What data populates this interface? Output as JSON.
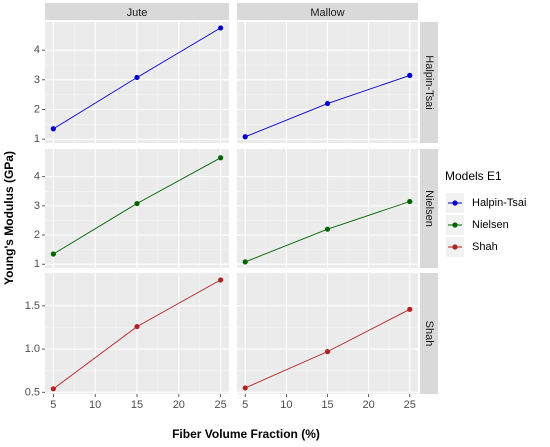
{
  "chart_data": {
    "type": "line",
    "xlabel": "Fiber Volume Fraction (%)",
    "ylabel": "Young's Modulus (GPa)",
    "columns": [
      "Jute",
      "Mallow"
    ],
    "rows": [
      "Halpin-Tsai",
      "Nielsen",
      "Shah"
    ],
    "x": [
      5,
      15,
      25
    ],
    "xlim": [
      4,
      26
    ],
    "xticks": [
      5,
      10,
      15,
      20,
      25
    ],
    "legend": {
      "title": "Models E1",
      "placement": "right",
      "entries": [
        {
          "label": "Halpin-Tsai",
          "color": "#0000CC"
        },
        {
          "label": "Nielsen",
          "color": "#006400"
        },
        {
          "label": "Shah",
          "color": "#B22222"
        }
      ]
    },
    "grid": true,
    "row_scales": [
      {
        "ylim": [
          0.87,
          4.95
        ],
        "yticks": [
          1,
          2,
          3,
          4
        ],
        "tick_labels": [
          "1",
          "2",
          "3",
          "4"
        ]
      },
      {
        "ylim": [
          0.87,
          4.95
        ],
        "yticks": [
          1,
          2,
          3,
          4
        ],
        "tick_labels": [
          "1",
          "2",
          "3",
          "4"
        ]
      },
      {
        "ylim": [
          0.48,
          1.88
        ],
        "yticks": [
          0.5,
          1.0,
          1.5
        ],
        "tick_labels": [
          "0.5",
          "1.0",
          "1.5"
        ]
      }
    ],
    "panels": [
      {
        "column": "Jute",
        "row": "Halpin-Tsai",
        "series": "Halpin-Tsai",
        "values": [
          1.35,
          3.08,
          4.75
        ]
      },
      {
        "column": "Mallow",
        "row": "Halpin-Tsai",
        "series": "Halpin-Tsai",
        "values": [
          1.08,
          2.2,
          3.15
        ]
      },
      {
        "column": "Jute",
        "row": "Nielsen",
        "series": "Nielsen",
        "values": [
          1.35,
          3.08,
          4.65
        ]
      },
      {
        "column": "Mallow",
        "row": "Nielsen",
        "series": "Nielsen",
        "values": [
          1.08,
          2.2,
          3.15
        ]
      },
      {
        "column": "Jute",
        "row": "Shah",
        "series": "Shah",
        "values": [
          0.54,
          1.26,
          1.8
        ]
      },
      {
        "column": "Mallow",
        "row": "Shah",
        "series": "Shah",
        "values": [
          0.55,
          0.97,
          1.46
        ]
      }
    ]
  }
}
